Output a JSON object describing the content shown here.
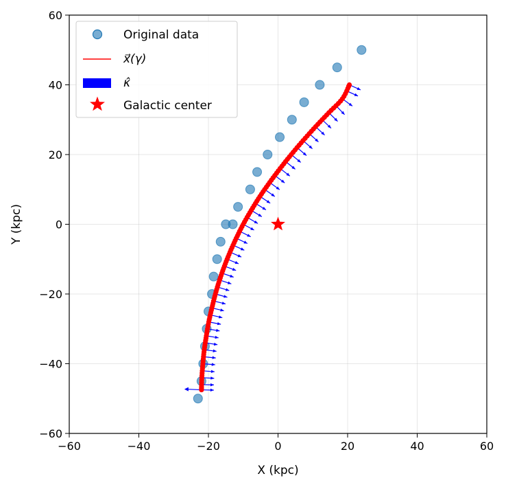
{
  "chart_data": {
    "type": "scatter",
    "title": "",
    "xlabel": "X (kpc)",
    "ylabel": "Y (kpc)",
    "xlim": [
      -60,
      60
    ],
    "ylim": [
      -60,
      60
    ],
    "xticks": [
      -60,
      -40,
      -20,
      0,
      20,
      40,
      60
    ],
    "yticks": [
      -60,
      -40,
      -20,
      0,
      20,
      40,
      60
    ],
    "grid": true,
    "legend_position": "top-left",
    "legend": [
      {
        "label": "Original data",
        "marker": "circle",
        "color": "#1f77b4"
      },
      {
        "label": "x⃗(γ)",
        "marker": "line",
        "color": "#ff0000"
      },
      {
        "label": "κ̂",
        "marker": "patch",
        "color": "#0000ff"
      },
      {
        "label": "Galactic center",
        "marker": "star",
        "color": "#ff0000"
      }
    ],
    "series": [
      {
        "name": "Original data",
        "color": "#1f77b4",
        "x": [
          -23,
          -22,
          -21.5,
          -21,
          -20.5,
          -20,
          -19,
          -18.5,
          -17.5,
          -16.5,
          -15,
          -13,
          -11.5,
          -8,
          -6,
          -3,
          0.5,
          4,
          7.5,
          12,
          17,
          24
        ],
        "y": [
          -50,
          -45,
          -40,
          -35,
          -30,
          -25,
          -20,
          -15,
          -10,
          -5,
          0,
          0,
          5,
          10,
          15,
          20,
          25,
          30,
          35,
          40,
          45,
          50
        ]
      },
      {
        "name": "x⃗(γ)",
        "color": "#ff0000",
        "x": [
          -22,
          -21.9,
          -21.6,
          -21.2,
          -20.6,
          -19.9,
          -19,
          -18,
          -16.8,
          -15.4,
          -13.8,
          -12,
          -10,
          -7.7,
          -5.2,
          -2.4,
          0.6,
          3.8,
          7.2,
          10.8,
          14.6,
          18.5,
          20.5
        ],
        "y": [
          -47.5,
          -44,
          -40,
          -36,
          -32,
          -28,
          -24,
          -20,
          -16,
          -12,
          -8,
          -4,
          0,
          4,
          8,
          12,
          16,
          20,
          24,
          28,
          32,
          36,
          40
        ]
      }
    ],
    "center": {
      "name": "Galactic center",
      "x": 0,
      "y": 0,
      "color": "#ff0000"
    }
  }
}
